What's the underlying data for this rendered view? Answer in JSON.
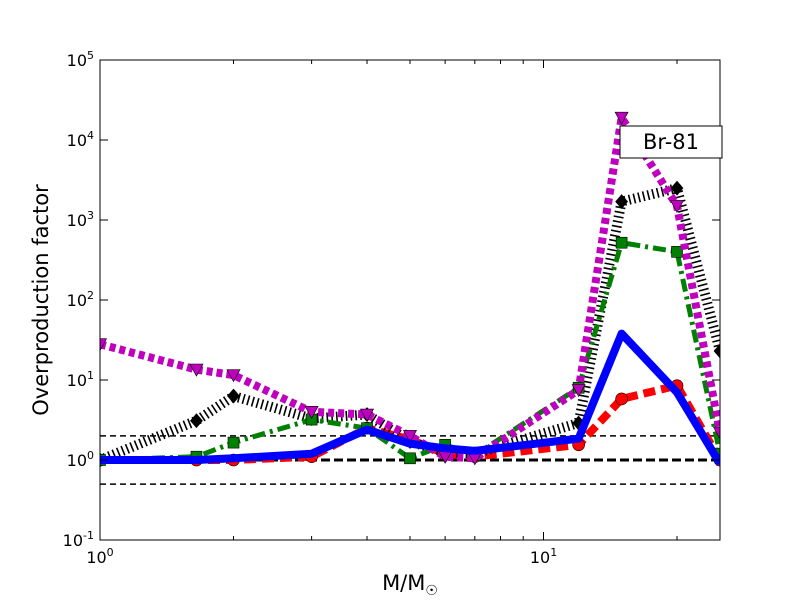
{
  "chart_data": {
    "type": "line",
    "title": "",
    "xlabel": "M/M",
    "xlabel_sub": "☉",
    "ylabel": "Overproduction factor",
    "xscale": "log",
    "yscale": "log",
    "xlim": [
      1.0,
      25.0
    ],
    "ylim": [
      0.1,
      100000
    ],
    "x_ticks": [
      {
        "value": 1,
        "base": "10",
        "exp": "0"
      },
      {
        "value": 10,
        "base": "10",
        "exp": "1"
      }
    ],
    "y_ticks": [
      {
        "value": 0.1,
        "base": "10",
        "exp": "-1"
      },
      {
        "value": 1,
        "base": "10",
        "exp": "0"
      },
      {
        "value": 10,
        "base": "10",
        "exp": "1"
      },
      {
        "value": 100,
        "base": "10",
        "exp": "2"
      },
      {
        "value": 1000,
        "base": "10",
        "exp": "3"
      },
      {
        "value": 10000,
        "base": "10",
        "exp": "4"
      },
      {
        "value": 100000,
        "base": "10",
        "exp": "5"
      }
    ],
    "annotation": "Br-81",
    "grid": false,
    "reference_lines": [
      {
        "y": 2.0,
        "style": "thin-dashed",
        "color": "#000000"
      },
      {
        "y": 1.0,
        "style": "thick-dashed",
        "color": "#000000"
      },
      {
        "y": 0.5,
        "style": "thin-dashed",
        "color": "#000000"
      }
    ],
    "series": [
      {
        "color": "#ff0000",
        "style": "dashed",
        "marker": "circle",
        "x": [
          1.0,
          1.65,
          2.0,
          3.0,
          4.0,
          5.0,
          6.0,
          7.0,
          12.0,
          15.0,
          20.0,
          25.0
        ],
        "y": [
          1.0,
          1.0,
          1.0,
          1.1,
          2.5,
          1.8,
          1.2,
          1.1,
          1.55,
          5.8,
          8.5,
          1.0
        ]
      },
      {
        "color": "#000000",
        "style": "dotted-hatched",
        "marker": "diamond",
        "x": [
          1.0,
          1.65,
          2.0,
          3.0,
          4.0,
          5.0,
          6.0,
          7.0,
          12.0,
          15.0,
          20.0,
          25.0
        ],
        "y": [
          1.0,
          3.1,
          6.3,
          3.3,
          3.7,
          1.7,
          1.25,
          1.2,
          2.9,
          1700,
          2500,
          23
        ]
      },
      {
        "color": "#008000",
        "style": "dashdot",
        "marker": "square",
        "x": [
          1.0,
          1.65,
          2.0,
          3.0,
          4.0,
          5.0,
          6.0,
          7.0,
          12.0,
          15.0,
          20.0,
          25.0
        ],
        "y": [
          1.0,
          1.1,
          1.65,
          3.2,
          2.5,
          1.05,
          1.55,
          1.15,
          8.0,
          520,
          400,
          1.2
        ]
      },
      {
        "color": "#bf00bf",
        "style": "dotted",
        "marker": "triangle-down",
        "x": [
          1.0,
          1.65,
          2.0,
          3.0,
          4.0,
          5.0,
          6.0,
          7.0,
          12.0,
          15.0,
          20.0,
          25.0
        ],
        "y": [
          28,
          13.5,
          11.5,
          4.0,
          3.7,
          2.0,
          1.1,
          1.05,
          7.5,
          19000,
          1500,
          2.2
        ]
      },
      {
        "color": "#0000ff",
        "style": "solid",
        "marker": "none",
        "x": [
          1.0,
          1.65,
          2.0,
          3.0,
          4.0,
          5.0,
          6.0,
          7.0,
          12.0,
          15.0,
          20.0,
          25.0
        ],
        "y": [
          1.0,
          1.0,
          1.05,
          1.2,
          2.4,
          1.6,
          1.4,
          1.3,
          1.85,
          38,
          7.0,
          0.9
        ]
      }
    ]
  }
}
